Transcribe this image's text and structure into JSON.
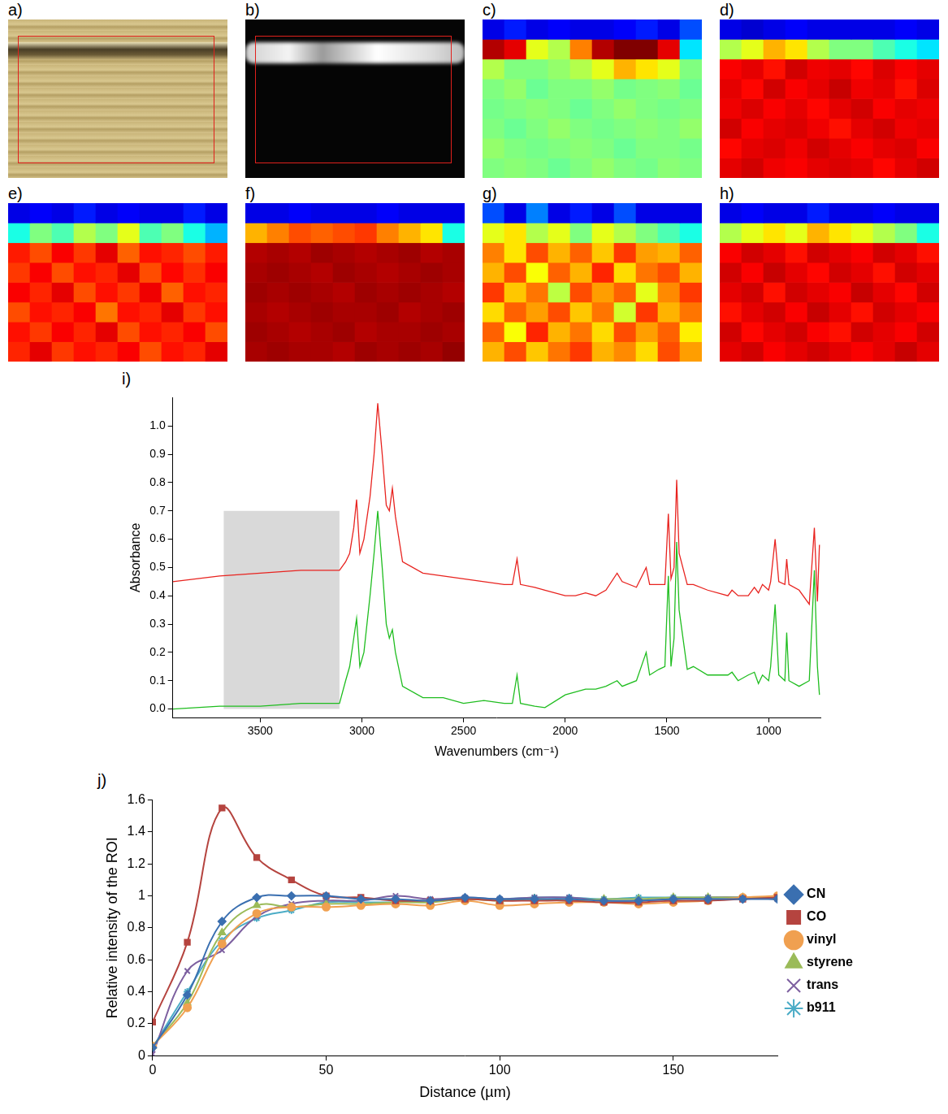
{
  "chart_data": [
    {
      "type": "image",
      "title": "a)"
    },
    {
      "type": "image",
      "title": "b)"
    },
    {
      "type": "heatmap",
      "title": "c)",
      "tick_labels": false,
      "color_range": [
        0,
        1
      ],
      "cells": [
        [
          0.1,
          0.15,
          0.1,
          0.12,
          0.1,
          0.1,
          0.12,
          0.15,
          0.1,
          0.2
        ],
        [
          0.95,
          0.9,
          0.6,
          0.55,
          0.75,
          0.95,
          1.0,
          1.0,
          0.9,
          0.35
        ],
        [
          0.55,
          0.5,
          0.5,
          0.52,
          0.55,
          0.6,
          0.7,
          0.65,
          0.6,
          0.5
        ],
        [
          0.5,
          0.52,
          0.48,
          0.5,
          0.5,
          0.52,
          0.49,
          0.5,
          0.51,
          0.48
        ],
        [
          0.49,
          0.5,
          0.51,
          0.5,
          0.48,
          0.5,
          0.52,
          0.5,
          0.49,
          0.5
        ],
        [
          0.5,
          0.48,
          0.5,
          0.52,
          0.5,
          0.49,
          0.5,
          0.51,
          0.5,
          0.52
        ],
        [
          0.52,
          0.5,
          0.49,
          0.5,
          0.51,
          0.5,
          0.48,
          0.5,
          0.5,
          0.49
        ],
        [
          0.5,
          0.51,
          0.5,
          0.48,
          0.5,
          0.52,
          0.5,
          0.49,
          0.51,
          0.5
        ]
      ]
    },
    {
      "type": "heatmap",
      "title": "d)",
      "tick_labels": false,
      "color_range": [
        0,
        1
      ],
      "cells": [
        [
          0.1,
          0.08,
          0.1,
          0.12,
          0.1,
          0.1,
          0.1,
          0.1,
          0.12,
          0.1
        ],
        [
          0.55,
          0.6,
          0.7,
          0.65,
          0.55,
          0.5,
          0.5,
          0.45,
          0.4,
          0.35
        ],
        [
          0.88,
          0.9,
          0.86,
          0.92,
          0.89,
          0.9,
          0.87,
          0.91,
          0.88,
          0.9
        ],
        [
          0.9,
          0.87,
          0.92,
          0.88,
          0.9,
          0.93,
          0.89,
          0.9,
          0.86,
          0.91
        ],
        [
          0.89,
          0.91,
          0.88,
          0.9,
          0.87,
          0.9,
          0.92,
          0.88,
          0.9,
          0.89
        ],
        [
          0.92,
          0.88,
          0.9,
          0.91,
          0.89,
          0.86,
          0.9,
          0.92,
          0.89,
          0.9
        ],
        [
          0.87,
          0.9,
          0.91,
          0.89,
          0.92,
          0.9,
          0.88,
          0.9,
          0.91,
          0.88
        ],
        [
          0.9,
          0.92,
          0.89,
          0.88,
          0.9,
          0.91,
          0.9,
          0.87,
          0.9,
          0.92
        ]
      ]
    },
    {
      "type": "heatmap",
      "title": "e)",
      "tick_labels": false,
      "color_range": [
        0,
        1
      ],
      "cells": [
        [
          0.1,
          0.12,
          0.1,
          0.15,
          0.1,
          0.12,
          0.1,
          0.1,
          0.15,
          0.1
        ],
        [
          0.4,
          0.5,
          0.45,
          0.55,
          0.5,
          0.6,
          0.45,
          0.5,
          0.4,
          0.3
        ],
        [
          0.85,
          0.8,
          0.88,
          0.82,
          0.9,
          0.78,
          0.86,
          0.84,
          0.8,
          0.85
        ],
        [
          0.82,
          0.88,
          0.8,
          0.86,
          0.84,
          0.9,
          0.8,
          0.87,
          0.83,
          0.88
        ],
        [
          0.88,
          0.84,
          0.9,
          0.8,
          0.86,
          0.82,
          0.89,
          0.78,
          0.86,
          0.84
        ],
        [
          0.8,
          0.86,
          0.84,
          0.88,
          0.76,
          0.86,
          0.84,
          0.9,
          0.82,
          0.86
        ],
        [
          0.86,
          0.82,
          0.88,
          0.84,
          0.9,
          0.8,
          0.86,
          0.84,
          0.88,
          0.8
        ],
        [
          0.84,
          0.9,
          0.82,
          0.86,
          0.84,
          0.88,
          0.8,
          0.86,
          0.84,
          0.9
        ]
      ]
    },
    {
      "type": "heatmap",
      "title": "f)",
      "tick_labels": false,
      "color_range": [
        0,
        1
      ],
      "cells": [
        [
          0.1,
          0.1,
          0.12,
          0.1,
          0.1,
          0.1,
          0.12,
          0.1,
          0.1,
          0.1
        ],
        [
          0.7,
          0.75,
          0.8,
          0.78,
          0.8,
          0.82,
          0.75,
          0.7,
          0.65,
          0.4
        ],
        [
          0.95,
          0.96,
          0.95,
          0.97,
          0.96,
          0.95,
          0.96,
          0.97,
          0.95,
          0.96
        ],
        [
          0.96,
          0.97,
          0.96,
          0.95,
          0.97,
          0.96,
          0.95,
          0.96,
          0.97,
          0.96
        ],
        [
          0.97,
          0.96,
          0.97,
          0.96,
          0.95,
          0.97,
          0.96,
          0.97,
          0.96,
          0.95
        ],
        [
          0.96,
          0.95,
          0.96,
          0.97,
          0.96,
          0.96,
          0.97,
          0.95,
          0.96,
          0.97
        ],
        [
          0.97,
          0.96,
          0.95,
          0.96,
          0.97,
          0.95,
          0.96,
          0.96,
          0.97,
          0.96
        ],
        [
          0.96,
          0.97,
          0.96,
          0.96,
          0.95,
          0.97,
          0.96,
          0.97,
          0.96,
          0.98
        ]
      ]
    },
    {
      "type": "heatmap",
      "title": "g)",
      "tick_labels": false,
      "color_range": [
        0,
        1
      ],
      "cells": [
        [
          0.2,
          0.1,
          0.25,
          0.1,
          0.15,
          0.1,
          0.2,
          0.1,
          0.1,
          0.1
        ],
        [
          0.6,
          0.65,
          0.55,
          0.6,
          0.5,
          0.6,
          0.55,
          0.5,
          0.45,
          0.4
        ],
        [
          0.75,
          0.65,
          0.8,
          0.7,
          0.78,
          0.68,
          0.82,
          0.72,
          0.7,
          0.78
        ],
        [
          0.7,
          0.8,
          0.62,
          0.78,
          0.7,
          0.84,
          0.66,
          0.76,
          0.8,
          0.7
        ],
        [
          0.82,
          0.68,
          0.76,
          0.56,
          0.8,
          0.72,
          0.78,
          0.6,
          0.74,
          0.82
        ],
        [
          0.66,
          0.78,
          0.72,
          0.8,
          0.68,
          0.76,
          0.58,
          0.82,
          0.7,
          0.76
        ],
        [
          0.78,
          0.62,
          0.84,
          0.7,
          0.76,
          0.66,
          0.8,
          0.72,
          0.78,
          0.64
        ],
        [
          0.7,
          0.8,
          0.68,
          0.76,
          0.82,
          0.7,
          0.74,
          0.66,
          0.8,
          0.72
        ]
      ]
    },
    {
      "type": "heatmap",
      "title": "h)",
      "tick_labels": false,
      "color_range": [
        0,
        1
      ],
      "cells": [
        [
          0.1,
          0.12,
          0.1,
          0.1,
          0.15,
          0.1,
          0.1,
          0.12,
          0.1,
          0.1
        ],
        [
          0.55,
          0.6,
          0.65,
          0.6,
          0.7,
          0.65,
          0.6,
          0.55,
          0.5,
          0.4
        ],
        [
          0.88,
          0.92,
          0.9,
          0.86,
          0.92,
          0.9,
          0.88,
          0.92,
          0.9,
          0.86
        ],
        [
          0.92,
          0.88,
          0.93,
          0.9,
          0.87,
          0.92,
          0.9,
          0.86,
          0.92,
          0.9
        ],
        [
          0.9,
          0.92,
          0.86,
          0.92,
          0.9,
          0.88,
          0.93,
          0.9,
          0.87,
          0.92
        ],
        [
          0.86,
          0.9,
          0.92,
          0.88,
          0.93,
          0.9,
          0.86,
          0.92,
          0.9,
          0.88
        ],
        [
          0.92,
          0.87,
          0.9,
          0.92,
          0.88,
          0.86,
          0.92,
          0.9,
          0.88,
          0.92
        ],
        [
          0.9,
          0.92,
          0.88,
          0.9,
          0.92,
          0.9,
          0.88,
          0.9,
          0.93,
          0.9
        ]
      ]
    },
    {
      "type": "line",
      "title": "i)",
      "xlabel": "Wavenumbers (cm⁻¹)",
      "ylabel": "Absorbance",
      "grid": false,
      "xlim": [
        3930,
        745
      ],
      "ylim": [
        -0.03,
        1.1
      ],
      "xticks": [
        3500,
        3000,
        2500,
        2000,
        1500,
        1000
      ],
      "yticks": [
        {
          "value": 0,
          "label": "0.0"
        },
        0.1,
        0.2,
        0.3,
        0.4,
        0.5,
        0.6,
        0.7,
        0.8,
        0.9,
        {
          "value": 1,
          "label": "1.0"
        }
      ],
      "shaded_region": {
        "x": [
          3680,
          3110
        ],
        "y": [
          0,
          0.7
        ]
      },
      "x": [
        3930,
        3700,
        3500,
        3300,
        3110,
        3080,
        3060,
        3040,
        3026,
        3010,
        2990,
        2960,
        2940,
        2922,
        2900,
        2880,
        2865,
        2850,
        2835,
        2800,
        2700,
        2600,
        2500,
        2400,
        2300,
        2260,
        2237,
        2220,
        2150,
        2100,
        2000,
        1950,
        1900,
        1850,
        1800,
        1745,
        1720,
        1650,
        1602,
        1585,
        1540,
        1510,
        1493,
        1480,
        1465,
        1452,
        1440,
        1400,
        1370,
        1300,
        1200,
        1180,
        1150,
        1100,
        1070,
        1050,
        1030,
        1000,
        990,
        968,
        950,
        920,
        911,
        900,
        850,
        800,
        775,
        760,
        750
      ],
      "series": [
        {
          "color": "#e8231f",
          "values": [
            0.45,
            0.47,
            0.48,
            0.49,
            0.49,
            0.52,
            0.55,
            0.64,
            0.74,
            0.55,
            0.6,
            0.75,
            0.9,
            1.08,
            0.9,
            0.72,
            0.7,
            0.78,
            0.68,
            0.52,
            0.48,
            0.47,
            0.46,
            0.45,
            0.44,
            0.44,
            0.53,
            0.44,
            0.43,
            0.42,
            0.4,
            0.4,
            0.41,
            0.4,
            0.42,
            0.48,
            0.45,
            0.43,
            0.5,
            0.44,
            0.44,
            0.44,
            0.69,
            0.46,
            0.5,
            0.81,
            0.55,
            0.44,
            0.44,
            0.42,
            0.4,
            0.42,
            0.4,
            0.4,
            0.43,
            0.41,
            0.44,
            0.42,
            0.45,
            0.6,
            0.45,
            0.44,
            0.53,
            0.44,
            0.42,
            0.37,
            0.64,
            0.38,
            0.58
          ]
        },
        {
          "color": "#1fbd1f",
          "values": [
            0.0,
            0.01,
            0.01,
            0.02,
            0.02,
            0.1,
            0.15,
            0.25,
            0.32,
            0.15,
            0.2,
            0.4,
            0.55,
            0.7,
            0.5,
            0.3,
            0.25,
            0.28,
            0.2,
            0.08,
            0.04,
            0.04,
            0.02,
            0.03,
            0.02,
            0.02,
            0.12,
            0.02,
            0.01,
            0.005,
            0.05,
            0.06,
            0.07,
            0.07,
            0.08,
            0.1,
            0.08,
            0.1,
            0.2,
            0.12,
            0.14,
            0.15,
            0.47,
            0.15,
            0.25,
            0.59,
            0.35,
            0.14,
            0.15,
            0.12,
            0.12,
            0.13,
            0.1,
            0.12,
            0.13,
            0.09,
            0.12,
            0.1,
            0.15,
            0.37,
            0.12,
            0.1,
            0.27,
            0.1,
            0.08,
            0.1,
            0.49,
            0.15,
            0.05
          ]
        }
      ]
    },
    {
      "type": "line",
      "title": "j)",
      "xlabel": "Distance (µm)",
      "ylabel": "Relative intensity of the ROI",
      "grid": false,
      "legend": "right",
      "xlim": [
        0,
        180
      ],
      "ylim": [
        0,
        1.6
      ],
      "xticks": [
        0,
        50,
        100,
        150
      ],
      "yticks": [
        0,
        0.2,
        0.4,
        0.6,
        0.8,
        1,
        1.2,
        1.4,
        1.6
      ],
      "x": [
        0,
        10,
        20,
        30,
        40,
        50,
        60,
        70,
        80,
        90,
        100,
        110,
        120,
        130,
        140,
        150,
        160,
        170,
        180
      ],
      "series": [
        {
          "name": "CN",
          "color": "#3a6fb0",
          "marker": "diamond",
          "values": [
            0.05,
            0.38,
            0.84,
            0.99,
            1.0,
            1.0,
            0.98,
            0.98,
            0.97,
            0.99,
            0.98,
            0.98,
            0.98,
            0.97,
            0.97,
            0.98,
            0.98,
            0.98,
            0.98
          ]
        },
        {
          "name": "CO",
          "color": "#b5443f",
          "marker": "square",
          "values": [
            0.21,
            0.71,
            1.55,
            1.24,
            1.1,
            1.0,
            0.99,
            0.97,
            0.97,
            0.98,
            0.97,
            0.97,
            0.97,
            0.96,
            0.96,
            0.97,
            0.97,
            0.98,
            0.99
          ]
        },
        {
          "name": "vinyl",
          "color": "#f0a050",
          "marker": "circle",
          "values": [
            0.06,
            0.3,
            0.7,
            0.89,
            0.93,
            0.93,
            0.94,
            0.95,
            0.94,
            0.97,
            0.94,
            0.95,
            0.96,
            0.96,
            0.95,
            0.96,
            0.97,
            0.99,
            1.0
          ]
        },
        {
          "name": "styrene",
          "color": "#9bbb59",
          "marker": "triangle",
          "values": [
            0.06,
            0.33,
            0.77,
            0.94,
            0.93,
            0.95,
            0.95,
            0.96,
            0.96,
            0.98,
            0.97,
            0.98,
            0.97,
            0.98,
            0.98,
            0.99,
            0.99,
            0.99,
            0.99
          ]
        },
        {
          "name": "trans",
          "color": "#7d60a0",
          "marker": "x",
          "values": [
            0.01,
            0.53,
            0.66,
            0.87,
            0.95,
            0.97,
            0.97,
            1.0,
            0.98,
            0.99,
            0.98,
            0.99,
            0.99,
            0.97,
            0.97,
            0.98,
            0.99,
            0.99,
            0.98
          ]
        },
        {
          "name": "b911",
          "color": "#4bacc6",
          "marker": "star",
          "values": [
            0.05,
            0.4,
            0.72,
            0.86,
            0.91,
            0.96,
            0.96,
            0.96,
            0.97,
            0.98,
            0.98,
            0.99,
            0.99,
            0.98,
            0.99,
            0.99,
            0.99,
            0.99,
            0.98
          ]
        }
      ]
    }
  ]
}
